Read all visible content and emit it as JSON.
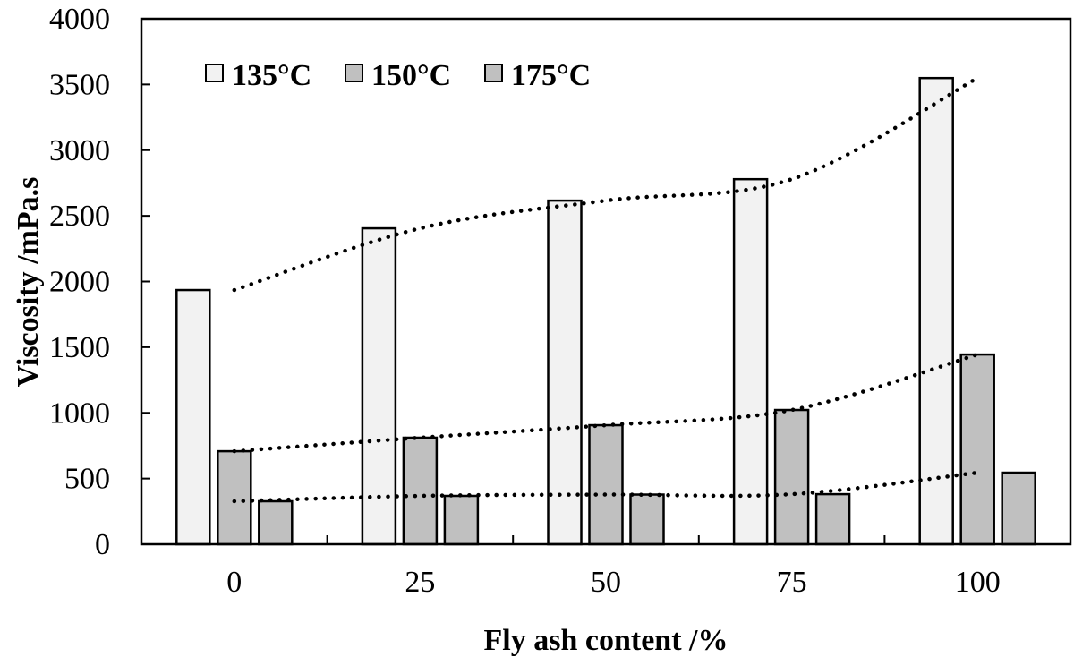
{
  "chart_data": {
    "type": "bar",
    "title": "",
    "xlabel": "Fly ash content /%",
    "ylabel": "Viscosity /mPa.s",
    "categories": [
      "0",
      "25",
      "50",
      "75",
      "100"
    ],
    "ylim": [
      0,
      4000
    ],
    "yticks": [
      0,
      500,
      1000,
      1500,
      2000,
      2500,
      3000,
      3500,
      4000
    ],
    "grid": false,
    "legend_position": "top-left inside",
    "series": [
      {
        "name": "135°C",
        "color": "#f2f2f2",
        "values": [
          1935,
          2405,
          2616,
          2779,
          3549
        ]
      },
      {
        "name": "150°C",
        "color": "#c0c0c0",
        "values": [
          708,
          811,
          906,
          1022,
          1444
        ]
      },
      {
        "name": "175°C",
        "color": "#c0c0c0",
        "values": [
          327,
          368,
          378,
          381,
          545
        ]
      }
    ],
    "trendlines": [
      {
        "series": "135°C",
        "style": "dotted",
        "type": "polynomial"
      },
      {
        "series": "150°C",
        "style": "dotted",
        "type": "polynomial"
      },
      {
        "series": "175°C",
        "style": "dotted",
        "type": "polynomial"
      }
    ]
  }
}
